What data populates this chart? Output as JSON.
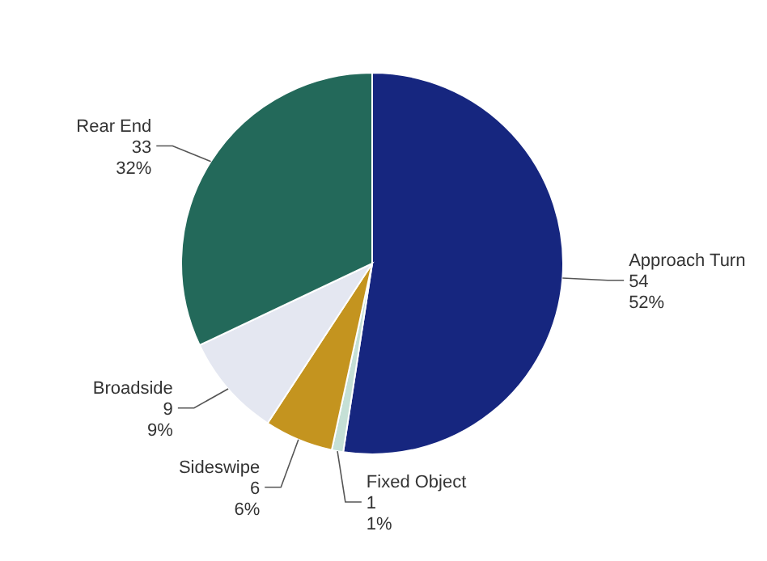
{
  "chart_data": {
    "type": "pie",
    "categories": [
      "Approach Turn",
      "Fixed Object",
      "Sideswipe",
      "Broadside",
      "Rear End"
    ],
    "values": [
      54,
      1,
      6,
      9,
      33
    ],
    "value_labels": [
      "54\n52%",
      "1\n1%",
      "6\n6%",
      "9\n9%",
      "33\n32%"
    ],
    "colors": [
      "#16267f",
      "#c5e0d6",
      "#c4941f",
      "#e4e7f1",
      "#23695a"
    ]
  }
}
